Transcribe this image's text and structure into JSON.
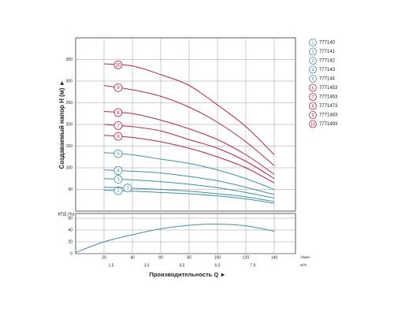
{
  "chart_data": [
    {
      "type": "line",
      "y_label": "Создаваемый напор H (м) ►",
      "x": [
        20,
        40,
        60,
        80,
        100,
        120,
        140
      ],
      "xlim": [
        0,
        155
      ],
      "xticks": [
        20,
        40,
        60,
        80,
        100,
        120,
        140
      ],
      "ylim": [
        0,
        400
      ],
      "yticks": [
        50,
        100,
        150,
        200,
        250,
        300,
        350
      ],
      "grid": true,
      "legend": "right",
      "series": [
        {
          "number": "1",
          "name": "777140",
          "color": "#3f8fa3",
          "values": [
            48,
            46,
            43,
            40,
            35,
            28,
            18
          ]
        },
        {
          "number": "2",
          "name": "777141",
          "color": "#3f8fa3",
          "values": [
            55,
            53,
            50,
            46,
            40,
            33,
            22
          ]
        },
        {
          "number": "3",
          "name": "777142",
          "color": "#3f8fa3",
          "values": [
            75,
            72,
            68,
            62,
            54,
            43,
            30
          ]
        },
        {
          "number": "4",
          "name": "777143",
          "color": "#3f8fa3",
          "values": [
            95,
            92,
            88,
            80,
            70,
            55,
            38
          ]
        },
        {
          "number": "5",
          "name": "777144",
          "color": "#3f8fa3",
          "values": [
            135,
            130,
            120,
            110,
            95,
            75,
            50
          ]
        },
        {
          "number": "6",
          "name": "7771453",
          "color": "#b3234b",
          "values": [
            175,
            170,
            160,
            145,
            125,
            100,
            65
          ]
        },
        {
          "number": "7",
          "name": "7771463",
          "color": "#b3234b",
          "values": [
            200,
            195,
            185,
            165,
            145,
            115,
            75
          ]
        },
        {
          "number": "8",
          "name": "7771473",
          "color": "#b3234b",
          "values": [
            230,
            225,
            210,
            190,
            165,
            130,
            85
          ]
        },
        {
          "number": "9",
          "name": "7771483",
          "color": "#b3234b",
          "values": [
            290,
            280,
            265,
            240,
            205,
            160,
            105
          ]
        },
        {
          "number": "10",
          "name": "7771493",
          "color": "#b3234b",
          "values": [
            340,
            335,
            315,
            290,
            245,
            195,
            130
          ]
        }
      ]
    },
    {
      "type": "line",
      "y_label": "КПД (%)",
      "x_label": "Производительность Q ►",
      "x": [
        0,
        20,
        40,
        60,
        80,
        100,
        120,
        140
      ],
      "xlim": [
        0,
        155
      ],
      "xticks": [
        20,
        40,
        60,
        80,
        100,
        120,
        140
      ],
      "x_unit": "л/мин",
      "x2lim": [
        0,
        9.3
      ],
      "x2ticks": [
        1.5,
        {
          "value": 3,
          "label": "3.0"
        },
        4.5,
        {
          "value": 6,
          "label": "6.0"
        },
        7.5
      ],
      "x2_unit": "м³/ч",
      "ylim": [
        0,
        68
      ],
      "yticks": [
        0,
        20,
        40,
        60
      ],
      "grid": true,
      "series": [
        {
          "color": "#3f8fa3",
          "values": [
            2,
            20,
            32,
            42,
            48,
            50,
            47,
            38
          ]
        }
      ]
    }
  ]
}
